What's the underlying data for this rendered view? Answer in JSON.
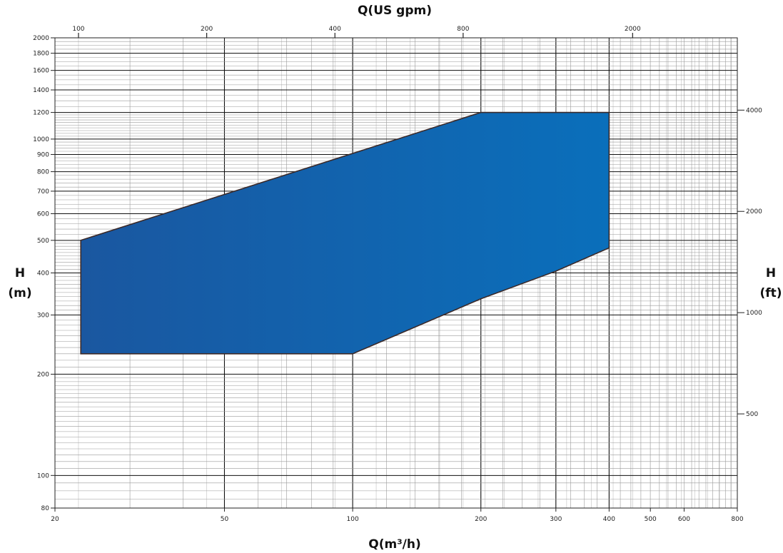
{
  "chart_data": {
    "type": "area",
    "x_scale": "log",
    "y_scale": "log",
    "xlabel_bottom": "Q(m³/h)",
    "xlabel_top": "Q(US gpm)",
    "ylabel_left_top": "H",
    "ylabel_left_bottom": "(m)",
    "ylabel_right_top": "H",
    "ylabel_right_bottom": "(ft)",
    "xlim": [
      20,
      800
    ],
    "ylim": [
      80,
      2000
    ],
    "grid": true,
    "x_ticks_bottom": [
      20,
      50,
      100,
      200,
      300,
      400,
      500,
      600,
      800
    ],
    "x_ticks_top": [
      100,
      200,
      400,
      800,
      2000
    ],
    "y_ticks_left": [
      80,
      100,
      200,
      300,
      400,
      500,
      600,
      700,
      800,
      900,
      1000,
      1200,
      1400,
      1600,
      1800,
      2000
    ],
    "y_ticks_right": [
      500,
      1000,
      2000,
      4000
    ],
    "fill_color": "#0e65ad",
    "polygon": [
      {
        "x": 23,
        "y": 500
      },
      {
        "x": 200,
        "y": 1200
      },
      {
        "x": 400,
        "y": 1200
      },
      {
        "x": 400,
        "y": 475
      },
      {
        "x": 300,
        "y": 405
      },
      {
        "x": 200,
        "y": 335
      },
      {
        "x": 100,
        "y": 230
      },
      {
        "x": 23,
        "y": 230
      }
    ]
  }
}
